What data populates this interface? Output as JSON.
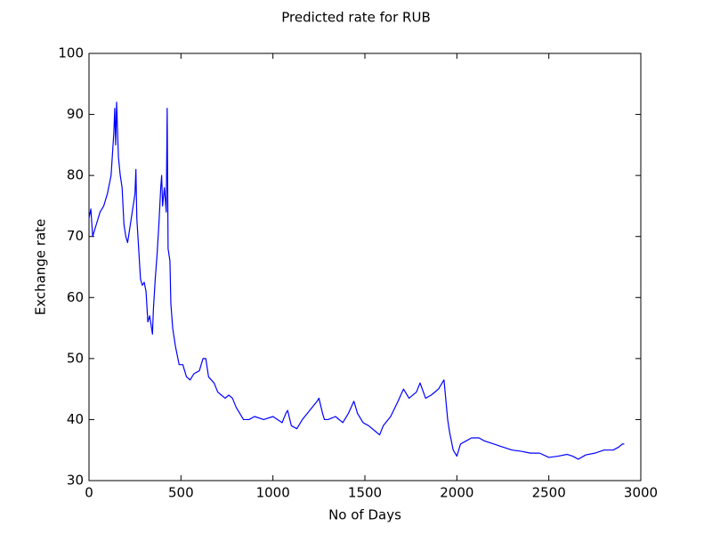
{
  "chart_data": {
    "type": "line",
    "title": "Predicted rate for RUB",
    "xlabel": "No of Days",
    "ylabel": "Exchange rate",
    "color": "#0000ff",
    "grid": false,
    "xlim": [
      0,
      3000
    ],
    "xticks": [
      0,
      500,
      1000,
      1500,
      2000,
      2500,
      3000
    ],
    "ylim": [
      30,
      100
    ],
    "yticks": [
      30,
      40,
      50,
      60,
      70,
      80,
      90,
      100
    ],
    "x": [
      0,
      10,
      20,
      40,
      60,
      80,
      100,
      120,
      135,
      140,
      145,
      150,
      160,
      170,
      180,
      190,
      200,
      210,
      220,
      240,
      250,
      255,
      260,
      270,
      280,
      290,
      300,
      310,
      320,
      330,
      340,
      345,
      350,
      360,
      370,
      380,
      390,
      395,
      400,
      410,
      420,
      425,
      430,
      440,
      445,
      455,
      470,
      490,
      510,
      530,
      550,
      570,
      600,
      620,
      635,
      650,
      680,
      700,
      720,
      740,
      760,
      780,
      800,
      820,
      840,
      870,
      900,
      950,
      1000,
      1050,
      1070,
      1080,
      1100,
      1130,
      1160,
      1200,
      1240,
      1250,
      1270,
      1280,
      1300,
      1340,
      1380,
      1410,
      1440,
      1460,
      1490,
      1520,
      1560,
      1580,
      1600,
      1640,
      1680,
      1710,
      1740,
      1780,
      1800,
      1830,
      1860,
      1900,
      1930,
      1950,
      1960,
      1980,
      2000,
      2020,
      2050,
      2080,
      2120,
      2150,
      2200,
      2250,
      2300,
      2350,
      2400,
      2450,
      2500,
      2550,
      2600,
      2630,
      2660,
      2700,
      2750,
      2800,
      2850,
      2880,
      2900,
      2910
    ],
    "values": [
      73,
      74.5,
      70,
      72,
      74,
      75,
      77,
      80,
      87,
      91,
      85,
      92,
      83,
      80,
      78,
      72,
      70,
      69,
      71,
      75,
      77,
      81,
      73,
      68,
      63,
      62,
      62.5,
      61,
      56,
      57,
      55,
      54,
      58,
      63,
      67,
      72,
      78,
      80,
      75,
      78,
      74,
      91,
      68,
      66,
      59,
      55,
      52,
      49,
      49,
      47,
      46.5,
      47.5,
      48,
      50,
      50,
      47,
      46,
      44.5,
      44,
      43.5,
      44,
      43.5,
      42,
      41,
      40,
      40,
      40.5,
      40,
      40.5,
      39.5,
      41,
      41.5,
      39,
      38.5,
      40,
      41.5,
      43,
      43.5,
      41,
      40,
      40,
      40.5,
      39.5,
      41,
      43,
      41,
      39.5,
      39,
      38,
      37.5,
      39,
      40.5,
      43,
      45,
      43.5,
      44.5,
      46,
      43.5,
      44,
      45,
      46.5,
      40,
      38,
      35,
      34,
      36,
      36.5,
      37,
      37,
      36.5,
      36,
      35.5,
      35,
      34.8,
      34.5,
      34.5,
      33.8,
      34,
      34.3,
      34,
      33.5,
      34.2,
      34.5,
      35,
      35,
      35.5,
      36,
      36
    ]
  }
}
